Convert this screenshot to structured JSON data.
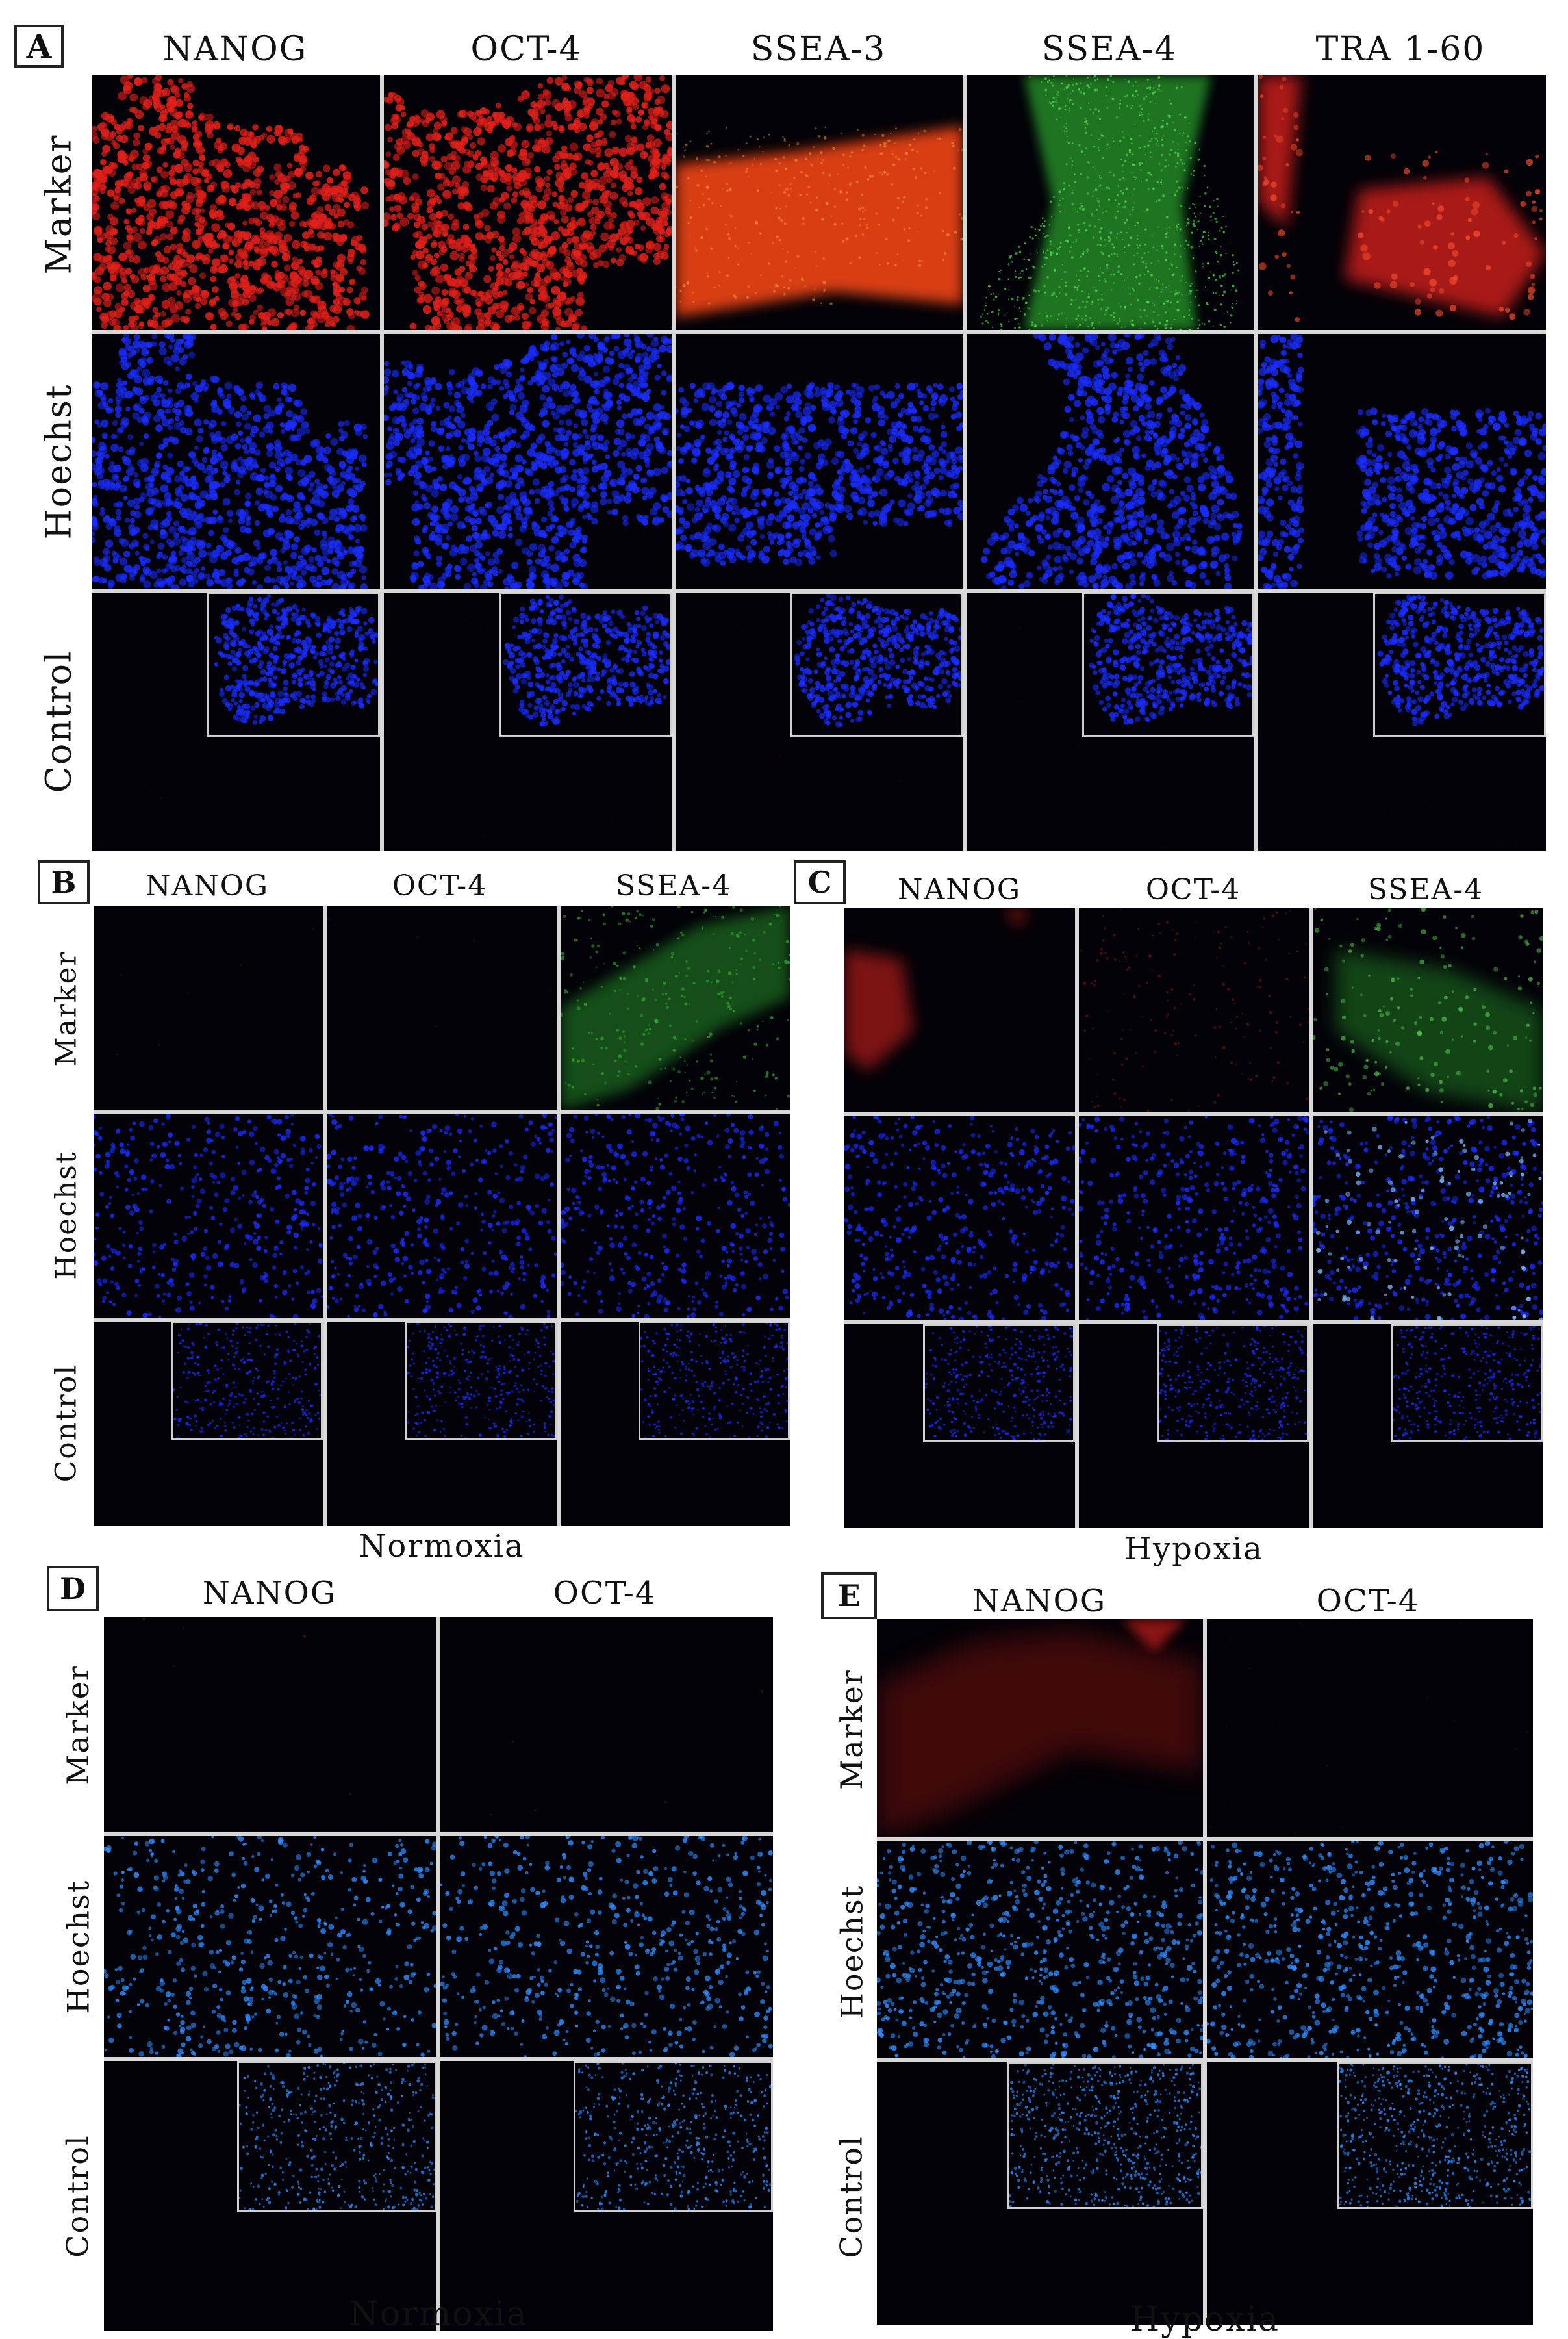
{
  "panels": {
    "A": {
      "label": "A",
      "columns": [
        "NANOG",
        "OCT-4",
        "SSEA-3",
        "SSEA-4",
        "TRA 1-60"
      ],
      "rows": [
        "Marker",
        "Hoechst",
        "Control"
      ]
    },
    "B": {
      "label": "B",
      "columns": [
        "NANOG",
        "OCT-4",
        "SSEA-4"
      ],
      "rows": [
        "Marker",
        "Hoechst",
        "Control"
      ],
      "caption": "Normoxia"
    },
    "C": {
      "label": "C",
      "columns": [
        "NANOG",
        "OCT-4",
        "SSEA-4"
      ],
      "rows": [
        "Marker",
        "Hoechst",
        "Control"
      ],
      "caption": "Hypoxia"
    },
    "D": {
      "label": "D",
      "columns": [
        "NANOG",
        "OCT-4"
      ],
      "rows": [
        "Marker",
        "Hoechst",
        "Control"
      ],
      "caption": "Normoxia"
    },
    "E": {
      "label": "E",
      "columns": [
        "NANOG",
        "OCT-4"
      ],
      "rows": [
        "Marker",
        "Hoechst",
        "Control"
      ],
      "caption": "Hypoxia"
    }
  },
  "colors": {
    "marker_red": "#e0201a",
    "marker_orange": "#ff4a12",
    "marker_green": "#30c030",
    "hoechst_blue": "#1a2dff",
    "hoechst_light_blue": "#2f8cff",
    "background": "#020208"
  }
}
